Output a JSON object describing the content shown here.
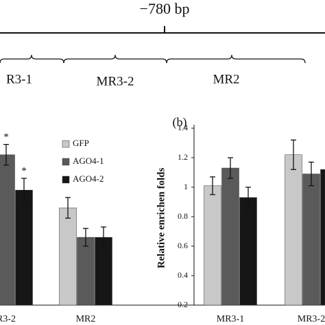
{
  "diagram": {
    "title": "−780 bp",
    "regions": [
      "R3-1",
      "MR3-2",
      "MR2"
    ]
  },
  "chart_data": [
    {
      "type": "bar",
      "categories": [
        "R3-2",
        "MR2"
      ],
      "series": [
        {
          "name": "GFP",
          "color": "#c8c8c8",
          "values": [
            null,
            0.86
          ],
          "errors": [
            null,
            0.07
          ]
        },
        {
          "name": "AGO4-1",
          "color": "#5a5a5a",
          "values": [
            1.22,
            0.66
          ],
          "errors": [
            0.07,
            0.06
          ]
        },
        {
          "name": "AGO4-2",
          "color": "#161616",
          "values": [
            0.98,
            0.66
          ],
          "errors": [
            0.08,
            0.07
          ]
        }
      ],
      "annotations": [
        "*",
        "*"
      ],
      "ylim": [
        0.2,
        1.4
      ]
    },
    {
      "type": "bar",
      "panel_label": "(b)",
      "y_label": "Relative enrichen folds",
      "categories": [
        "MR3-1",
        "MR3-2"
      ],
      "series": [
        {
          "color": "#c8c8c8",
          "values": [
            1.01,
            1.22
          ],
          "errors": [
            0.06,
            0.1
          ]
        },
        {
          "color": "#5a5a5a",
          "values": [
            1.13,
            1.09
          ],
          "errors": [
            0.07,
            0.08
          ]
        },
        {
          "color": "#161616",
          "values": [
            0.93,
            1.12
          ],
          "errors": [
            0.07,
            0.08
          ]
        }
      ],
      "ylim": [
        0.2,
        1.4
      ],
      "yticks": [
        0.2,
        0.4,
        0.6,
        0.8,
        1,
        1.2,
        1.4
      ]
    }
  ]
}
